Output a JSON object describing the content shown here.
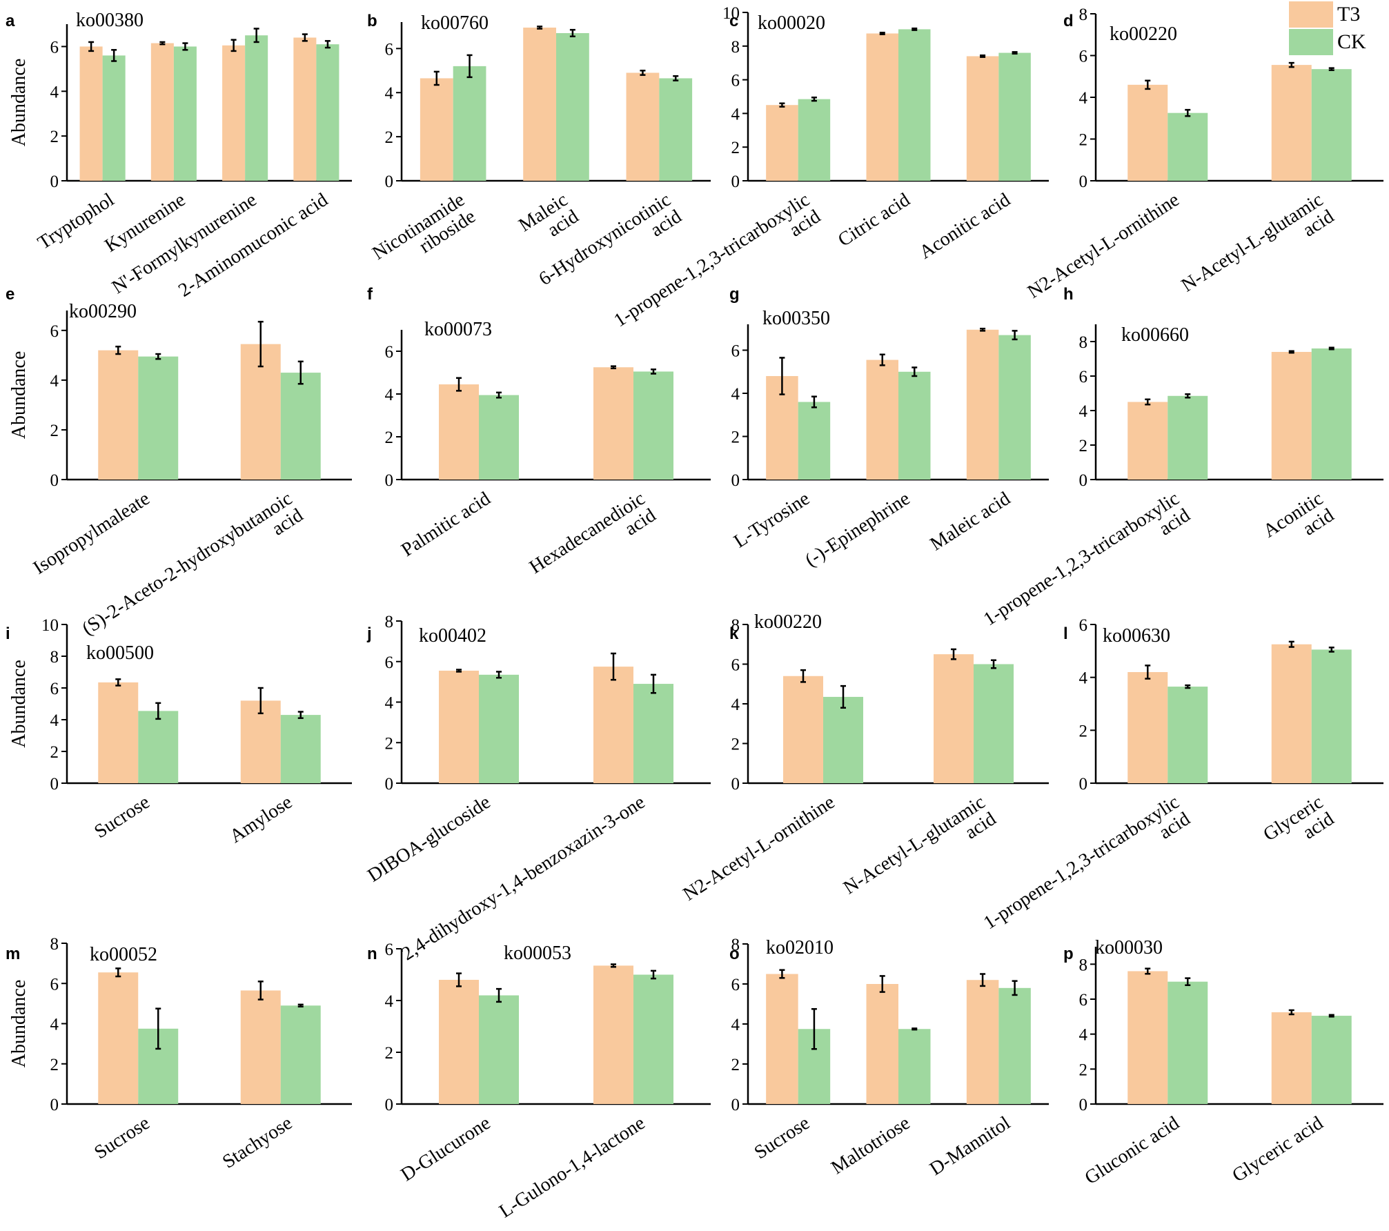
{
  "legend": {
    "entries": [
      {
        "label": "T3",
        "color": "#F9C99D"
      },
      {
        "label": "CK",
        "color": "#9FD89F"
      }
    ],
    "position": "top-right"
  },
  "colors": {
    "t3": "#F9C99D",
    "ck": "#9FD89F",
    "axis": "#000000"
  },
  "chart_data": [
    {
      "panel": "a",
      "pathway": "ko00380",
      "type": "bar",
      "ylabel": "Abundance",
      "ylim": [
        0,
        7
      ],
      "yticks": [
        0,
        2,
        4,
        6
      ],
      "categories": [
        [
          "Tryptophol"
        ],
        [
          "Kynurenine"
        ],
        [
          "N'-Formylkynurenine"
        ],
        [
          "2-Aminomuconic acid"
        ]
      ],
      "series": [
        {
          "name": "T3",
          "values": [
            6.0,
            6.15,
            6.05,
            6.4
          ],
          "errors": [
            0.2,
            0.05,
            0.25,
            0.15
          ]
        },
        {
          "name": "CK",
          "values": [
            5.6,
            6.0,
            6.5,
            6.1
          ],
          "errors": [
            0.25,
            0.15,
            0.3,
            0.15
          ]
        }
      ]
    },
    {
      "panel": "b",
      "pathway": "ko00760",
      "type": "bar",
      "ylabel": "",
      "ylim": [
        0,
        7.2
      ],
      "yticks": [
        0,
        2,
        4,
        6
      ],
      "categories": [
        [
          "Nicotinamide",
          "riboside"
        ],
        [
          "Maleic",
          "acid"
        ],
        [
          "6-Hydroxynicotinic",
          "acid"
        ]
      ],
      "series": [
        {
          "name": "T3",
          "values": [
            4.65,
            6.95,
            4.9
          ],
          "errors": [
            0.3,
            0.05,
            0.1
          ]
        },
        {
          "name": "CK",
          "values": [
            5.2,
            6.7,
            4.65
          ],
          "errors": [
            0.5,
            0.15,
            0.1
          ]
        }
      ]
    },
    {
      "panel": "c",
      "pathway": "ko00020",
      "type": "bar",
      "ylabel": "",
      "ylim": [
        0,
        10
      ],
      "yticks": [
        0,
        2,
        4,
        6,
        8,
        10
      ],
      "categories": [
        [
          "1-propene-1,2,3-tricarboxylic",
          "acid"
        ],
        [
          "Citric acid"
        ],
        [
          "Aconitic acid"
        ]
      ],
      "series": [
        {
          "name": "T3",
          "values": [
            4.5,
            8.75,
            7.4
          ],
          "errors": [
            0.1,
            0.05,
            0.05
          ]
        },
        {
          "name": "CK",
          "values": [
            4.85,
            9.0,
            7.6
          ],
          "errors": [
            0.1,
            0.05,
            0.05
          ]
        }
      ]
    },
    {
      "panel": "d",
      "pathway": "ko00220",
      "type": "bar",
      "ylabel": "",
      "ylim": [
        0,
        8
      ],
      "yticks": [
        0,
        2,
        4,
        6,
        8
      ],
      "categories": [
        [
          "N2-Acetyl-L-ornithine"
        ],
        [
          "N-Acetyl-L-glutamic",
          "acid"
        ]
      ],
      "series": [
        {
          "name": "T3",
          "values": [
            4.6,
            5.55
          ],
          "errors": [
            0.2,
            0.1
          ]
        },
        {
          "name": "CK",
          "values": [
            3.25,
            5.35
          ],
          "errors": [
            0.15,
            0.05
          ]
        }
      ]
    },
    {
      "panel": "e",
      "pathway": "ko00290",
      "type": "bar",
      "ylabel": "Abundance",
      "ylim": [
        0,
        6.8
      ],
      "yticks": [
        0,
        2,
        4,
        6
      ],
      "categories": [
        [
          "Isopropylmaleate"
        ],
        [
          "(S)-2-Aceto-2-hydroxybutanoic",
          "acid"
        ]
      ],
      "series": [
        {
          "name": "T3",
          "values": [
            5.2,
            5.45
          ],
          "errors": [
            0.15,
            0.9
          ]
        },
        {
          "name": "CK",
          "values": [
            4.95,
            4.3
          ],
          "errors": [
            0.1,
            0.45
          ]
        }
      ]
    },
    {
      "panel": "f",
      "pathway": "ko00073",
      "type": "bar",
      "ylabel": "",
      "ylim": [
        0,
        7
      ],
      "yticks": [
        0,
        2,
        4,
        6
      ],
      "categories": [
        [
          "Palmitic  acid"
        ],
        [
          "Hexadecanedioic",
          "acid"
        ]
      ],
      "series": [
        {
          "name": "T3",
          "values": [
            4.45,
            5.25
          ],
          "errors": [
            0.3,
            0.05
          ]
        },
        {
          "name": "CK",
          "values": [
            3.95,
            5.05
          ],
          "errors": [
            0.12,
            0.1
          ]
        }
      ]
    },
    {
      "panel": "g",
      "pathway": "ko00350",
      "type": "bar",
      "ylabel": "",
      "ylim": [
        0,
        7.2
      ],
      "yticks": [
        0,
        2,
        4,
        6
      ],
      "categories": [
        [
          "L-Tyrosine"
        ],
        [
          "(-)-Epinephrine"
        ],
        [
          "Maleic acid"
        ]
      ],
      "series": [
        {
          "name": "T3",
          "values": [
            4.8,
            5.55,
            6.95
          ],
          "errors": [
            0.85,
            0.25,
            0.05
          ]
        },
        {
          "name": "CK",
          "values": [
            3.6,
            5.0,
            6.7
          ],
          "errors": [
            0.25,
            0.2,
            0.2
          ]
        }
      ]
    },
    {
      "panel": "h",
      "pathway": "ko00660",
      "type": "bar",
      "ylabel": "",
      "ylim": [
        0,
        9
      ],
      "yticks": [
        0,
        2,
        4,
        6,
        8
      ],
      "categories": [
        [
          "1-propene-1,2,3-tricarboxylic",
          "acid"
        ],
        [
          "Aconitic",
          "acid"
        ]
      ],
      "series": [
        {
          "name": "T3",
          "values": [
            4.5,
            7.4
          ],
          "errors": [
            0.15,
            0.05
          ]
        },
        {
          "name": "CK",
          "values": [
            4.85,
            7.6
          ],
          "errors": [
            0.1,
            0.05
          ]
        }
      ]
    },
    {
      "panel": "i",
      "pathway": "ko00500",
      "type": "bar",
      "ylabel": "Abundance",
      "ylim": [
        0,
        10
      ],
      "yticks": [
        0,
        2,
        4,
        6,
        8,
        10
      ],
      "categories": [
        [
          "Sucrose"
        ],
        [
          "Amylose"
        ]
      ],
      "series": [
        {
          "name": "T3",
          "values": [
            6.35,
            5.2
          ],
          "errors": [
            0.2,
            0.8
          ]
        },
        {
          "name": "CK",
          "values": [
            4.55,
            4.3
          ],
          "errors": [
            0.5,
            0.2
          ]
        }
      ]
    },
    {
      "panel": "j",
      "pathway": "ko00402",
      "type": "bar",
      "ylabel": "",
      "ylim": [
        0,
        8
      ],
      "yticks": [
        0,
        2,
        4,
        6,
        8
      ],
      "categories": [
        [
          "DIBOA-glucoside"
        ],
        [
          "2,4-dihydroxy-1,4-benzoxazin-3-one"
        ]
      ],
      "series": [
        {
          "name": "T3",
          "values": [
            5.55,
            5.75
          ],
          "errors": [
            0.05,
            0.65
          ]
        },
        {
          "name": "CK",
          "values": [
            5.35,
            4.9
          ],
          "errors": [
            0.15,
            0.45
          ]
        }
      ]
    },
    {
      "panel": "k",
      "pathway": "ko00220",
      "type": "bar",
      "ylabel": "",
      "ylim": [
        0,
        8
      ],
      "yticks": [
        0,
        2,
        4,
        6,
        8
      ],
      "categories": [
        [
          "N2-Acetyl-L-ornithine"
        ],
        [
          "N-Acetyl-L-glutamic",
          "acid"
        ]
      ],
      "series": [
        {
          "name": "T3",
          "values": [
            5.4,
            6.5
          ],
          "errors": [
            0.3,
            0.25
          ]
        },
        {
          "name": "CK",
          "values": [
            4.35,
            6.0
          ],
          "errors": [
            0.55,
            0.2
          ]
        }
      ]
    },
    {
      "panel": "l",
      "pathway": "ko00630",
      "type": "bar",
      "ylabel": "",
      "ylim": [
        0,
        6
      ],
      "yticks": [
        0,
        2,
        4,
        6
      ],
      "categories": [
        [
          "1-propene-1,2,3-tricarboxylic",
          "acid"
        ],
        [
          "Glyceric",
          "acid"
        ]
      ],
      "series": [
        {
          "name": "T3",
          "values": [
            4.2,
            5.25
          ],
          "errors": [
            0.25,
            0.1
          ]
        },
        {
          "name": "CK",
          "values": [
            3.65,
            5.05
          ],
          "errors": [
            0.05,
            0.08
          ]
        }
      ]
    },
    {
      "panel": "m",
      "pathway": "ko00052",
      "type": "bar",
      "ylabel": "Abundance",
      "ylim": [
        0,
        8
      ],
      "yticks": [
        0,
        2,
        4,
        6,
        8
      ],
      "categories": [
        [
          "Sucrose"
        ],
        [
          "Stachyose"
        ]
      ],
      "series": [
        {
          "name": "T3",
          "values": [
            6.55,
            5.65
          ],
          "errors": [
            0.2,
            0.45
          ]
        },
        {
          "name": "CK",
          "values": [
            3.75,
            4.9
          ],
          "errors": [
            1.0,
            0.05
          ]
        }
      ]
    },
    {
      "panel": "n",
      "pathway": "ko00053",
      "type": "bar",
      "ylabel": "",
      "ylim": [
        0,
        6
      ],
      "yticks": [
        0,
        2,
        4,
        6
      ],
      "categories": [
        [
          "D-Glucurone"
        ],
        [
          "L-Gulono-1,4-lactone"
        ]
      ],
      "series": [
        {
          "name": "T3",
          "values": [
            4.8,
            5.35
          ],
          "errors": [
            0.25,
            0.05
          ]
        },
        {
          "name": "CK",
          "values": [
            4.2,
            5.0
          ],
          "errors": [
            0.25,
            0.15
          ]
        }
      ]
    },
    {
      "panel": "o",
      "pathway": "ko02010",
      "type": "bar",
      "ylabel": "",
      "ylim": [
        0,
        8
      ],
      "yticks": [
        0,
        2,
        4,
        6,
        8
      ],
      "categories": [
        [
          "Sucrose"
        ],
        [
          "Maltotriose"
        ],
        [
          "D-Mannitol"
        ]
      ],
      "series": [
        {
          "name": "T3",
          "values": [
            6.5,
            6.0,
            6.2
          ],
          "errors": [
            0.2,
            0.4,
            0.3
          ]
        },
        {
          "name": "CK",
          "values": [
            3.75,
            3.75,
            5.8
          ],
          "errors": [
            1.0,
            0.03,
            0.35
          ]
        }
      ]
    },
    {
      "panel": "p",
      "pathway": "ko00030",
      "type": "bar",
      "ylabel": "",
      "ylim": [
        0,
        9
      ],
      "yticks": [
        0,
        2,
        4,
        6,
        8
      ],
      "categories": [
        [
          "Gluconic acid"
        ],
        [
          "Glyceric acid"
        ]
      ],
      "series": [
        {
          "name": "T3",
          "values": [
            7.6,
            5.25
          ],
          "errors": [
            0.15,
            0.12
          ]
        },
        {
          "name": "CK",
          "values": [
            7.0,
            5.05
          ],
          "errors": [
            0.2,
            0.05
          ]
        }
      ]
    }
  ]
}
